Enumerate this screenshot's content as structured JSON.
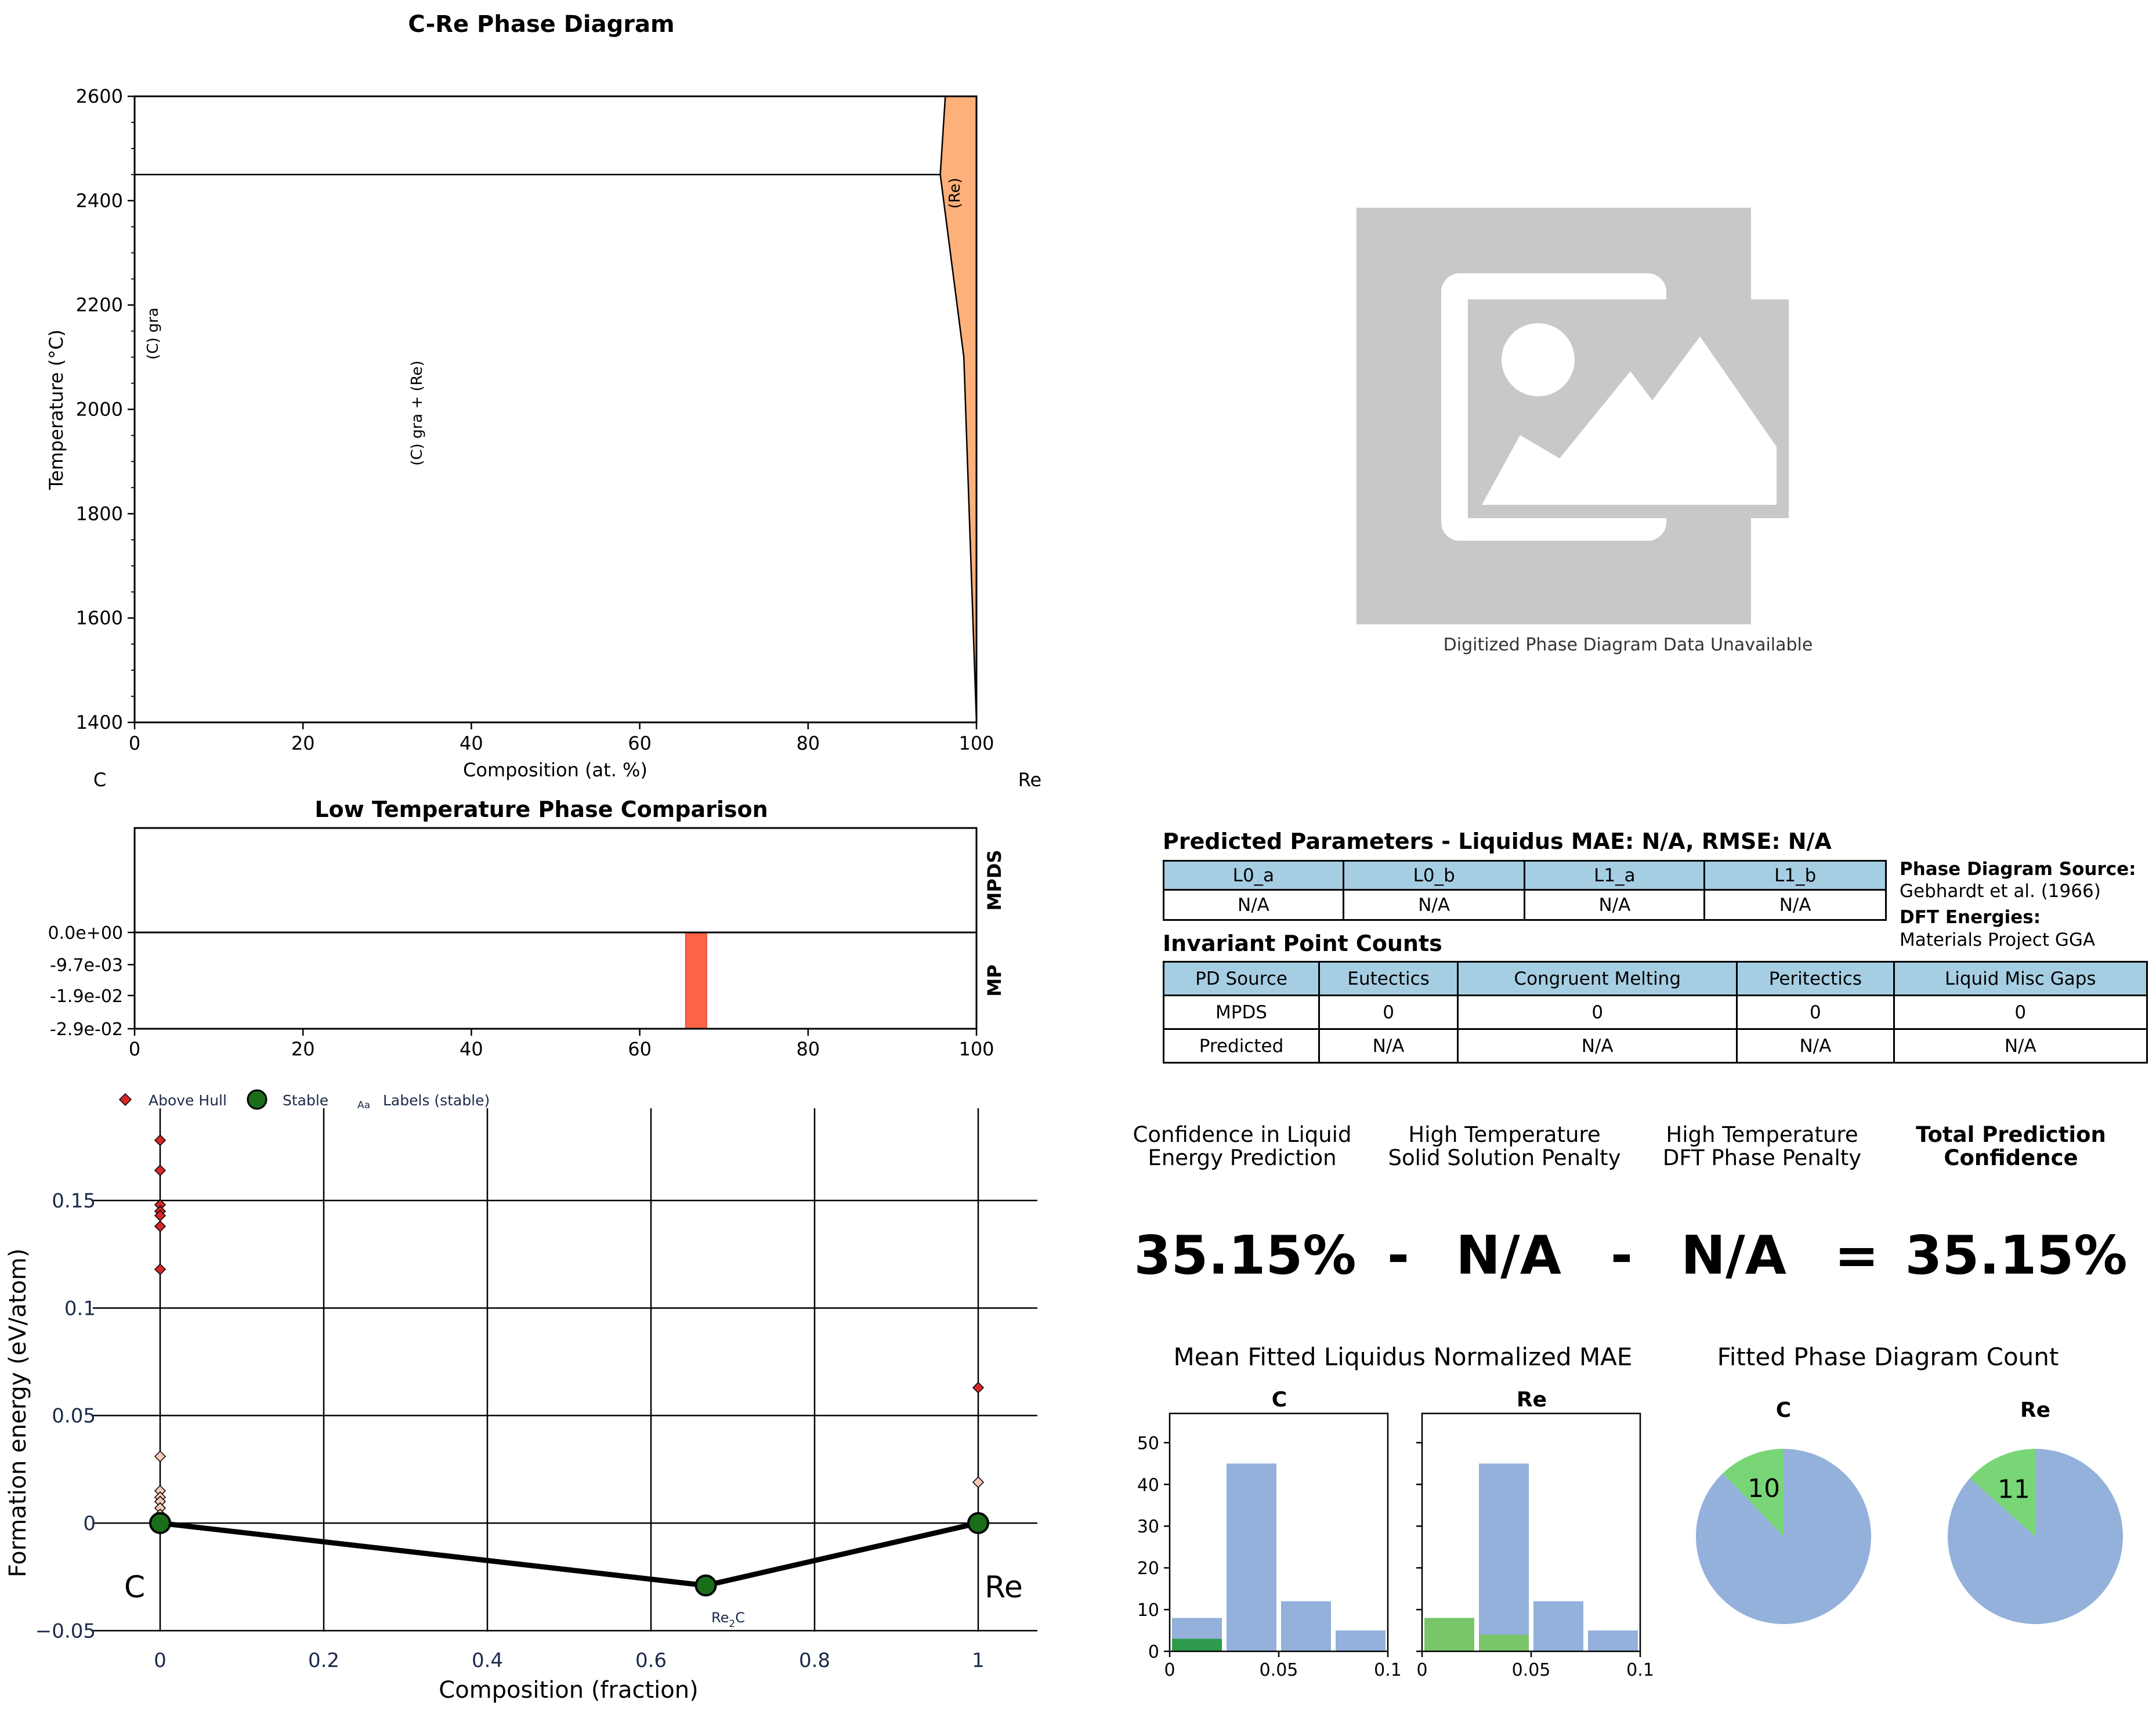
{
  "phase_diagram": {
    "title": "C-Re Phase Diagram",
    "xlabel": "Composition (at. %)",
    "ylabel": "Temperature (°C)",
    "left_element": "C",
    "right_element": "Re",
    "x_ticks": [
      "0",
      "20",
      "40",
      "60",
      "80",
      "100"
    ],
    "y_ticks": [
      "1400",
      "1600",
      "1800",
      "2000",
      "2200",
      "2400",
      "2600"
    ],
    "region_labels": [
      "(C) gra",
      "(C) gra + (Re)",
      "(Re)"
    ],
    "fill_color": "#fdb07a"
  },
  "placeholder": {
    "caption": "Digitized Phase Diagram Data Unavailable",
    "icon": "image-placeholder-icon"
  },
  "low_temp": {
    "title": "Low Temperature Phase Comparison",
    "right_labels": [
      "MPDS",
      "MP"
    ],
    "y_ticks": [
      "0.0e+00",
      "-9.7e-03",
      "-1.9e-02",
      "-2.9e-02"
    ],
    "x_ticks": [
      "0",
      "20",
      "40",
      "60",
      "80",
      "100"
    ],
    "bar_color": "#fb6444"
  },
  "hull": {
    "legend": [
      "Above Hull",
      "Stable",
      "Labels (stable)"
    ],
    "legend_text_icon": "Aa",
    "xlabel": "Composition (fraction)",
    "ylabel": "Formation energy (eV/atom)",
    "x_ticks": [
      "0",
      "0.2",
      "0.4",
      "0.6",
      "0.8",
      "1"
    ],
    "y_ticks": [
      "0.15",
      "0.1",
      "0.05",
      "0",
      "−0.05"
    ],
    "end_labels": [
      "C",
      "Re"
    ],
    "stable_label": "Re2C"
  },
  "params": {
    "title": "Predicted Parameters - Liquidus MAE: N/A, RMSE: N/A",
    "headers": [
      "L0_a",
      "L0_b",
      "L1_a",
      "L1_b"
    ],
    "values": [
      "N/A",
      "N/A",
      "N/A",
      "N/A"
    ]
  },
  "source": {
    "pd_label": "Phase Diagram Source:",
    "pd_value": "Gebhardt et al. (1966)",
    "dft_label": "DFT Energies:",
    "dft_value": "Materials Project GGA"
  },
  "invariant": {
    "title": "Invariant Point Counts",
    "headers": [
      "PD Source",
      "Eutectics",
      "Congruent Melting",
      "Peritectics",
      "Liquid Misc Gaps"
    ],
    "rows": [
      [
        "MPDS",
        "0",
        "0",
        "0",
        "0"
      ],
      [
        "Predicted",
        "N/A",
        "N/A",
        "N/A",
        "N/A"
      ]
    ]
  },
  "confidence": {
    "h1": [
      "Confidence in Liquid",
      "Energy Prediction"
    ],
    "h2": [
      "High Temperature",
      "Solid Solution Penalty"
    ],
    "h3": [
      "High Temperature",
      "DFT Phase Penalty"
    ],
    "h4": [
      "Total Prediction",
      "Confidence"
    ],
    "v1": "35.15%",
    "op1": "-",
    "v2": "N/A",
    "op2": "-",
    "v3": "N/A",
    "op3": "=",
    "v4": "35.15%"
  },
  "hist": {
    "title": "Mean Fitted Liquidus Normalized MAE",
    "panels": [
      "C",
      "Re"
    ],
    "y_ticks": [
      "0",
      "10",
      "20",
      "30",
      "40",
      "50"
    ],
    "x_ticks": [
      "0",
      "0.05",
      "0.1"
    ]
  },
  "pie": {
    "title": "Fitted Phase Diagram Count",
    "panels": [
      "C",
      "Re"
    ],
    "labels": [
      "10",
      "11"
    ]
  },
  "chart_data": [
    {
      "type": "area",
      "title": "C-Re Phase Diagram",
      "xlabel": "Composition (at. %)",
      "ylabel": "Temperature (°C)",
      "xlim": [
        0,
        100
      ],
      "ylim": [
        1400,
        2600
      ],
      "lines": [
        {
          "name": "eutectic",
          "x": [
            0,
            95.7
          ],
          "y": [
            2450,
            2450
          ]
        },
        {
          "name": "(Re) solvus left",
          "x": [
            100,
            98.5,
            95.7,
            96.3
          ],
          "y": [
            1400,
            2100,
            2450,
            2600
          ]
        }
      ],
      "regions": [
        {
          "name": "(Re)",
          "x": [
            96.3,
            95.7,
            98.5,
            100,
            100
          ],
          "y": [
            2600,
            2450,
            2100,
            1400,
            2600
          ]
        }
      ]
    },
    {
      "type": "bar",
      "title": "Low Temperature Phase Comparison",
      "xlim": [
        0,
        100
      ],
      "ylim": [
        -0.029,
        0.029
      ],
      "series": [
        {
          "name": "MPDS",
          "x": [],
          "values": []
        },
        {
          "name": "MP",
          "x": [
            66.7
          ],
          "values": [
            -0.029
          ]
        }
      ]
    },
    {
      "type": "scatter",
      "xlabel": "Composition (fraction)",
      "ylabel": "Formation energy (eV/atom)",
      "xlim": [
        -0.03,
        1.07
      ],
      "ylim": [
        -0.05,
        0.19
      ],
      "series": [
        {
          "name": "Above Hull",
          "x": [
            0,
            0,
            0,
            0,
            0,
            0,
            0,
            0,
            0,
            0,
            0,
            0,
            0,
            1,
            1
          ],
          "y": [
            0.178,
            0.164,
            0.148,
            0.145,
            0.143,
            0.138,
            0.118,
            0.031,
            0.015,
            0.012,
            0.01,
            0.007,
            0.004,
            0.063,
            0.019
          ]
        },
        {
          "name": "Stable",
          "x": [
            0,
            0.667,
            1
          ],
          "y": [
            0,
            -0.029,
            0
          ],
          "labels": [
            "",
            "Re2C",
            ""
          ]
        }
      ]
    },
    {
      "type": "bar",
      "title": "C",
      "x": [
        0.0125,
        0.0375,
        0.0625,
        0.0875
      ],
      "series": [
        {
          "name": "all",
          "values": [
            8,
            45,
            12,
            5
          ]
        },
        {
          "name": "selected",
          "values": [
            3,
            0,
            0,
            0
          ]
        }
      ],
      "ylim": [
        0,
        57
      ],
      "xlim": [
        0,
        0.1
      ]
    },
    {
      "type": "bar",
      "title": "Re",
      "x": [
        0.0125,
        0.0375,
        0.0625,
        0.0875
      ],
      "series": [
        {
          "name": "all",
          "values": [
            8,
            45,
            12,
            5
          ]
        },
        {
          "name": "selected",
          "values": [
            8,
            4,
            0,
            0
          ]
        }
      ],
      "ylim": [
        0,
        57
      ],
      "xlim": [
        0,
        0.1
      ]
    },
    {
      "type": "pie",
      "title": "C",
      "values": [
        10,
        72
      ],
      "labels": [
        "10",
        ""
      ],
      "colors": [
        "#78d677",
        "#93b1da"
      ]
    },
    {
      "type": "pie",
      "title": "Re",
      "values": [
        11,
        71
      ],
      "labels": [
        "11",
        ""
      ],
      "colors": [
        "#78d677",
        "#93b1da"
      ]
    }
  ]
}
